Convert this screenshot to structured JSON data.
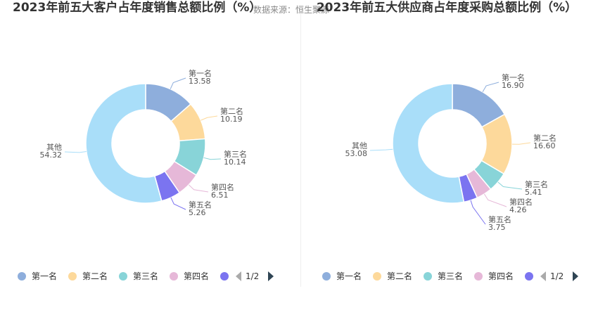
{
  "source_label": "数据来源：恒生聚源",
  "colors": [
    "#8eaedc",
    "#fdd99b",
    "#88d4d8",
    "#e6b8d8",
    "#7b74f0",
    "#a9def9"
  ],
  "chart_data": [
    {
      "type": "pie",
      "title": "2023年前五大客户占年度销售总额比例（%）",
      "slices": [
        {
          "label": "第一名",
          "value": 13.58,
          "value_text": "13.58"
        },
        {
          "label": "第二名",
          "value": 10.19,
          "value_text": "10.19"
        },
        {
          "label": "第三名",
          "value": 10.14,
          "value_text": "10.14"
        },
        {
          "label": "第四名",
          "value": 6.51,
          "value_text": "6.51"
        },
        {
          "label": "第五名",
          "value": 5.26,
          "value_text": "5.26"
        },
        {
          "label": "其他",
          "value": 54.32,
          "value_text": "54.32"
        }
      ],
      "legend": {
        "position": "bottom",
        "items": [
          "第一名",
          "第二名",
          "第三名",
          "第四名"
        ],
        "page": "1/2"
      }
    },
    {
      "type": "pie",
      "title": "2023年前五大供应商占年度采购总额比例（%）",
      "slices": [
        {
          "label": "第一名",
          "value": 16.9,
          "value_text": "16.90"
        },
        {
          "label": "第二名",
          "value": 16.6,
          "value_text": "16.60"
        },
        {
          "label": "第三名",
          "value": 5.41,
          "value_text": "5.41"
        },
        {
          "label": "第四名",
          "value": 4.26,
          "value_text": "4.26"
        },
        {
          "label": "第五名",
          "value": 3.75,
          "value_text": "3.75"
        },
        {
          "label": "其他",
          "value": 53.08,
          "value_text": "53.08"
        }
      ],
      "legend": {
        "position": "bottom",
        "items": [
          "第一名",
          "第二名",
          "第三名",
          "第四名"
        ],
        "page": "1/2"
      }
    }
  ]
}
